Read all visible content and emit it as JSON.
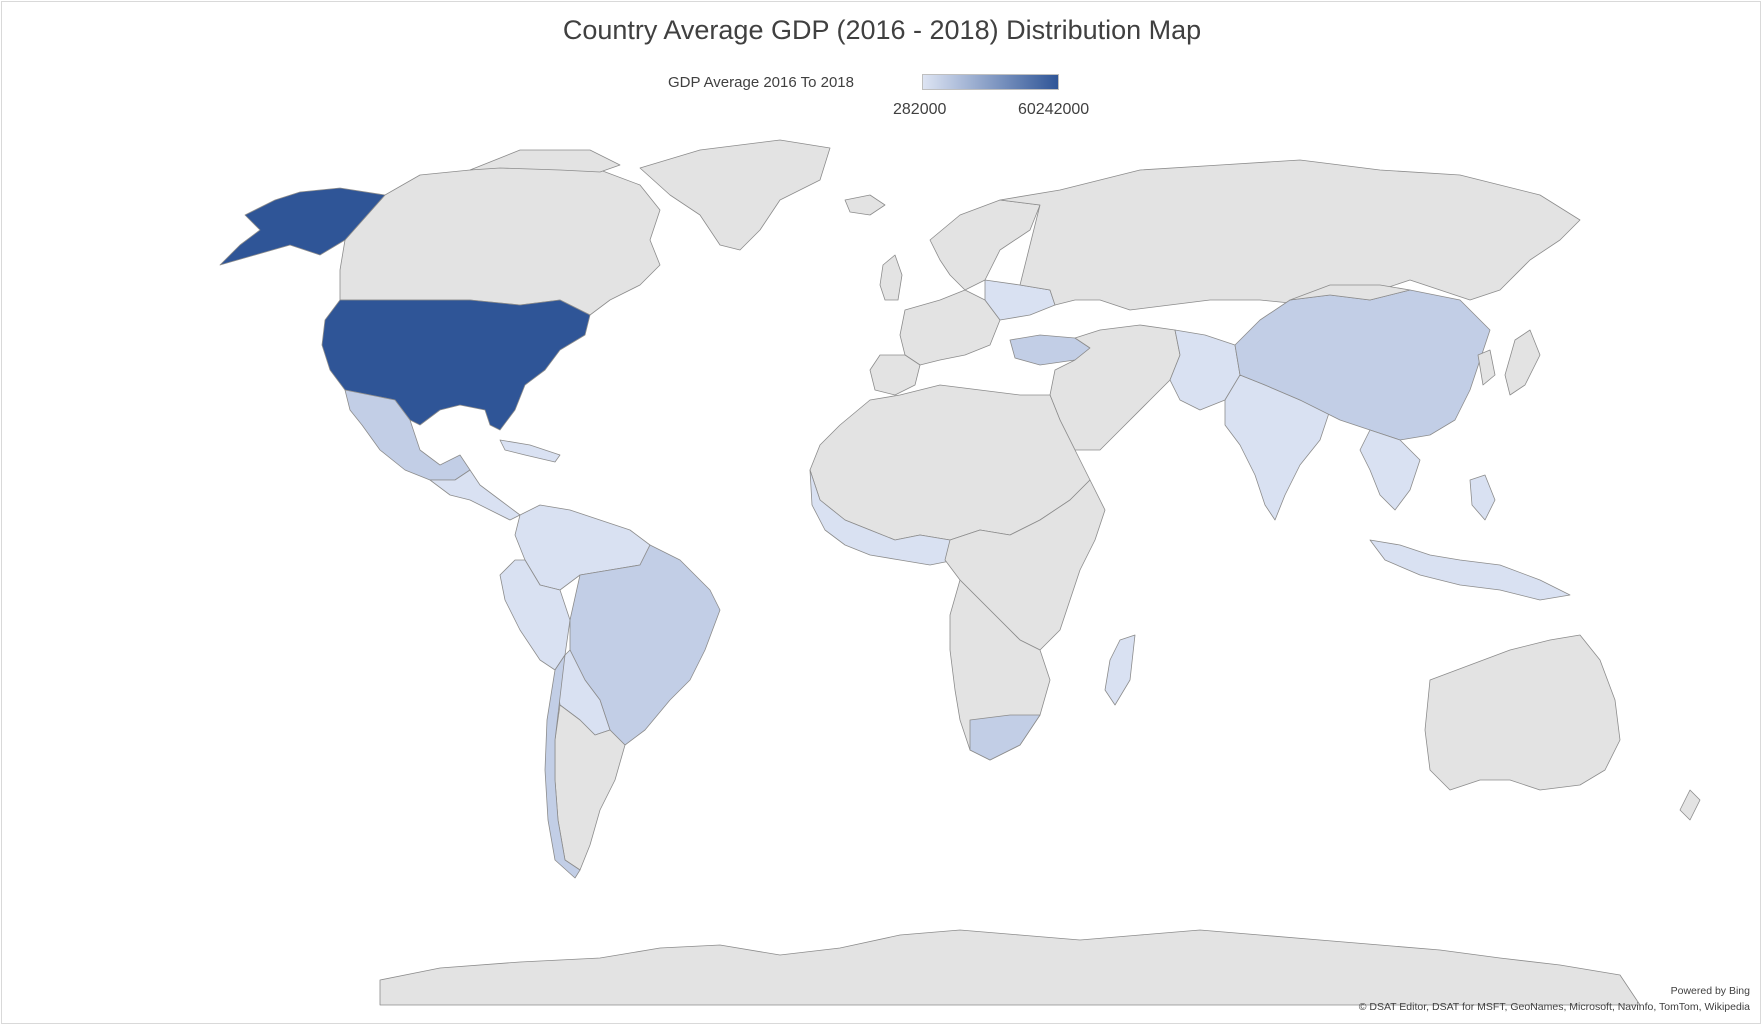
{
  "title": "Country Average GDP (2016 - 2018)  Distribution Map",
  "legend": {
    "label": "GDP Average 2016 To 2018",
    "min": "282000",
    "max": "60242000",
    "color_low": "#dde4f3",
    "color_high": "#2f5597"
  },
  "colors": {
    "no_data": "#e3e3e3",
    "high": "#2f5597",
    "medium": "#c2cee6",
    "low": "#d9e1f2",
    "border": "#8c8c8c"
  },
  "attribution": {
    "powered_by": "Powered by Bing",
    "sources": "© DSAT Editor, DSAT for MSFT, GeoNames, Microsoft, Navinfo, TomTom, Wikipedia"
  }
}
